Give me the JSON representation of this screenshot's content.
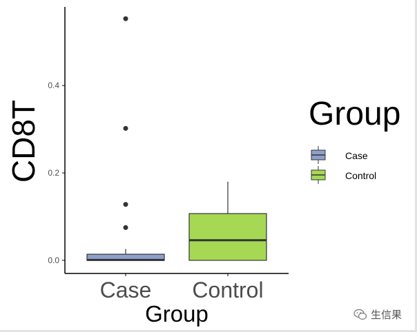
{
  "chart_data": {
    "type": "boxplot",
    "title": "",
    "xlabel": "Group",
    "ylabel": "CD8T",
    "categories": [
      "Case",
      "Control"
    ],
    "ylim": [
      -0.03,
      0.58
    ],
    "yticks": [
      0.0,
      0.2,
      0.4
    ],
    "ytick_labels": [
      "0.0",
      "0.2",
      "0.4"
    ],
    "grid": false,
    "legend": {
      "title": "Group",
      "position": "right",
      "entries": [
        {
          "label": "Case",
          "color": "#8DA0CB"
        },
        {
          "label": "Control",
          "color": "#A6D854"
        }
      ]
    },
    "boxes": [
      {
        "category": "Case",
        "color": "#8DA0CB",
        "whisker_low": 0.0,
        "q1": 0.0,
        "median": 0.001,
        "q3": 0.014,
        "whisker_high": 0.026,
        "outliers": [
          0.075,
          0.128,
          0.302,
          0.553
        ]
      },
      {
        "category": "Control",
        "color": "#A6D854",
        "whisker_low": 0.0,
        "q1": 0.0,
        "median": 0.046,
        "q3": 0.107,
        "whisker_high": 0.18,
        "outliers": []
      }
    ]
  },
  "watermark": {
    "text": "生信果",
    "icon": "wechat-icon"
  }
}
